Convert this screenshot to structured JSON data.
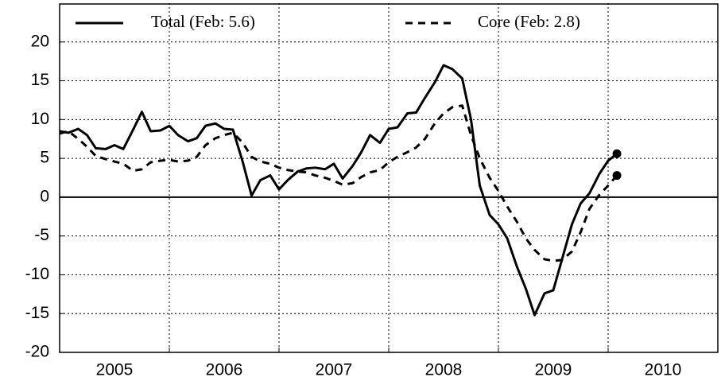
{
  "chart_data": {
    "type": "line",
    "x": [
      2005,
      2005.08,
      2005.17,
      2005.25,
      2005.33,
      2005.42,
      2005.5,
      2005.58,
      2005.67,
      2005.75,
      2005.83,
      2005.92,
      2006,
      2006.08,
      2006.17,
      2006.25,
      2006.33,
      2006.42,
      2006.5,
      2006.58,
      2006.67,
      2006.75,
      2006.83,
      2006.92,
      2007,
      2007.08,
      2007.17,
      2007.25,
      2007.33,
      2007.42,
      2007.5,
      2007.58,
      2007.67,
      2007.75,
      2007.83,
      2007.92,
      2008,
      2008.08,
      2008.17,
      2008.25,
      2008.33,
      2008.42,
      2008.5,
      2008.58,
      2008.67,
      2008.75,
      2008.83,
      2008.92,
      2009,
      2009.08,
      2009.17,
      2009.25,
      2009.33,
      2009.42,
      2009.5,
      2009.58,
      2009.67,
      2009.75,
      2009.83,
      2009.92,
      2010,
      2010.08
    ],
    "series": [
      {
        "name": "Total (Feb: 5.6)",
        "color": "#000000",
        "style": "solid",
        "values": [
          8.5,
          8.3,
          8.8,
          8.0,
          6.3,
          6.2,
          6.7,
          6.2,
          8.7,
          11.0,
          8.5,
          8.6,
          9.2,
          8.0,
          7.2,
          7.6,
          9.2,
          9.5,
          8.8,
          8.7,
          4.5,
          0.2,
          2.2,
          2.8,
          1.0,
          2.2,
          3.3,
          3.7,
          3.8,
          3.6,
          4.3,
          2.4,
          4.0,
          5.8,
          8.0,
          7.0,
          8.8,
          9.0,
          10.8,
          10.9,
          12.8,
          14.8,
          17.0,
          16.5,
          15.3,
          10.0,
          1.5,
          -2.3,
          -3.5,
          -5.3,
          -9.0,
          -11.8,
          -15.2,
          -12.4,
          -12.0,
          -8.0,
          -3.5,
          -0.8,
          0.5,
          3.0,
          4.7,
          5.6
        ]
      },
      {
        "name": "Core (Feb: 2.8)",
        "color": "#000000",
        "style": "dashed",
        "values": [
          8.2,
          8.5,
          7.5,
          6.5,
          5.3,
          4.9,
          4.6,
          4.3,
          3.4,
          3.6,
          4.5,
          4.7,
          4.8,
          4.6,
          4.7,
          5.2,
          6.7,
          7.6,
          8.0,
          8.3,
          7.0,
          5.2,
          4.6,
          4.3,
          3.8,
          3.5,
          3.3,
          3.2,
          2.8,
          2.5,
          2.1,
          1.6,
          1.8,
          2.6,
          3.2,
          3.5,
          4.5,
          5.2,
          5.8,
          6.4,
          7.5,
          9.5,
          10.8,
          11.6,
          11.8,
          8.0,
          5.0,
          2.5,
          0.8,
          -1.2,
          -3.2,
          -5.3,
          -6.8,
          -8.0,
          -8.2,
          -8.1,
          -7.0,
          -4.5,
          -1.5,
          0.3,
          1.5,
          2.8
        ]
      }
    ],
    "xlim": [
      2005,
      2011
    ],
    "xticks": [
      {
        "value": 2005.5,
        "label": "2005"
      },
      {
        "value": 2006.5,
        "label": "2006"
      },
      {
        "value": 2007.5,
        "label": "2007"
      },
      {
        "value": 2008.5,
        "label": "2008"
      },
      {
        "value": 2009.5,
        "label": "2009"
      },
      {
        "value": 2010.5,
        "label": "2010"
      }
    ],
    "xgrid": [
      2006,
      2007,
      2008,
      2009,
      2010
    ],
    "ylim": [
      -20,
      25
    ],
    "yticks": [
      -20,
      -15,
      -10,
      -5,
      0,
      5,
      10,
      15,
      20
    ],
    "grid": true,
    "zero_line": true,
    "end_markers": true,
    "legend": "top"
  }
}
